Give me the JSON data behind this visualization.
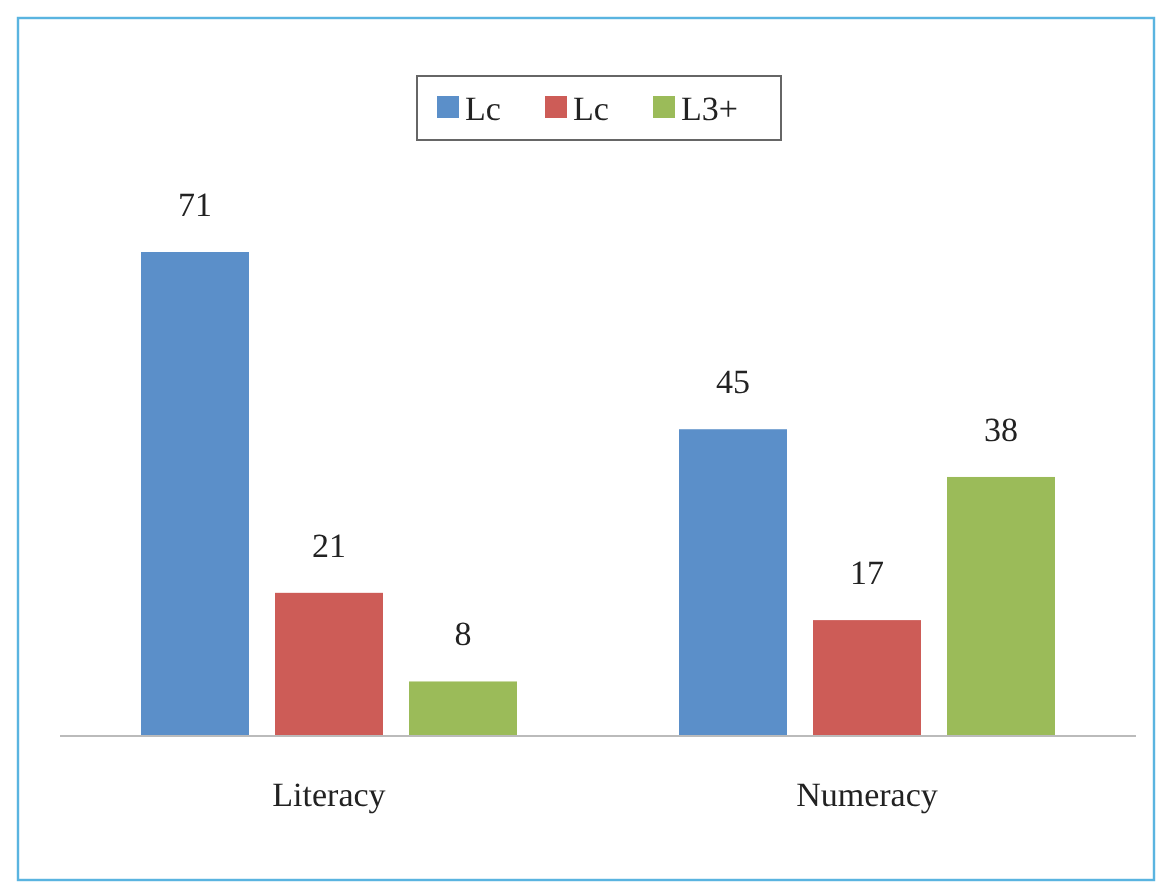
{
  "chart_data": {
    "type": "bar",
    "categories": [
      "Literacy",
      "Numeracy"
    ],
    "series": [
      {
        "name": "Lc",
        "color": "#5b8fc9",
        "values": [
          71,
          45
        ]
      },
      {
        "name": "Lc",
        "color": "#cd5c57",
        "values": [
          21,
          17
        ]
      },
      {
        "name": "L3+",
        "color": "#9bbb59",
        "values": [
          8,
          38
        ]
      }
    ],
    "data_labels": true,
    "legend": "top",
    "grid": false
  }
}
